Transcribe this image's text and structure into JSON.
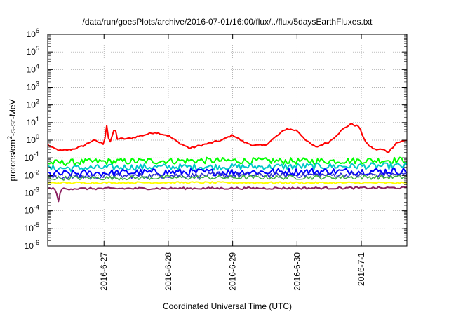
{
  "chart_data": {
    "type": "line",
    "title": "/data/run/goesPlots/archive/2016-07-01/16:00/flux/../flux/5daysEarthFluxes.txt",
    "xlabel": "Coordinated Universal Time (UTC)",
    "ylabel_parts": {
      "base": "protons/cm",
      "sup": "2",
      "rest": "-s-sr-MeV"
    },
    "y_scale": "log",
    "ylim_exp": [
      -6,
      6
    ],
    "y_tick_exponents": [
      -6,
      -5,
      -4,
      -3,
      -2,
      -1,
      0,
      1,
      2,
      3,
      4,
      5,
      6
    ],
    "y_tick_base": "10",
    "xlim": [
      "2016-06-26 03:00",
      "2016-07-01 17:00"
    ],
    "x_ticks": [
      {
        "label": "2016-6-27",
        "t": "2016-06-27 00:00"
      },
      {
        "label": "2016-6-28",
        "t": "2016-06-28 00:00"
      },
      {
        "label": "2016-6-29",
        "t": "2016-06-29 00:00"
      },
      {
        "label": "2016-6-30",
        "t": "2016-06-30 00:00"
      },
      {
        "label": "2016-7-1",
        "t": "2016-07-01 00:00"
      }
    ],
    "grid": true,
    "legend": "none",
    "series": [
      {
        "color": "#ff0000",
        "width": 2,
        "noise": 0.05,
        "points": [
          [
            "2016-06-26 03:00",
            0.55
          ],
          [
            "2016-06-26 05:00",
            0.35
          ],
          [
            "2016-06-26 08:00",
            0.25
          ],
          [
            "2016-06-26 12:00",
            0.3
          ],
          [
            "2016-06-26 16:00",
            0.45
          ],
          [
            "2016-06-26 20:00",
            1.0
          ],
          [
            "2016-06-27 00:00",
            0.6
          ],
          [
            "2016-06-27 01:00",
            7.0
          ],
          [
            "2016-06-27 02:00",
            0.6
          ],
          [
            "2016-06-27 03:00",
            1.5
          ],
          [
            "2016-06-27 04:00",
            5.5
          ],
          [
            "2016-06-27 05:00",
            1.2
          ],
          [
            "2016-06-27 09:00",
            1.2
          ],
          [
            "2016-06-27 14:00",
            1.8
          ],
          [
            "2016-06-27 19:00",
            2.8
          ],
          [
            "2016-06-28 00:00",
            1.8
          ],
          [
            "2016-06-28 04:00",
            0.7
          ],
          [
            "2016-06-28 08:00",
            0.35
          ],
          [
            "2016-06-28 14:00",
            0.6
          ],
          [
            "2016-06-28 20:00",
            1.0
          ],
          [
            "2016-06-29 00:00",
            2.0
          ],
          [
            "2016-06-29 04:00",
            0.8
          ],
          [
            "2016-06-29 08:00",
            0.5
          ],
          [
            "2016-06-29 12:00",
            0.5
          ],
          [
            "2016-06-29 16:00",
            1.5
          ],
          [
            "2016-06-29 20:00",
            4.5
          ],
          [
            "2016-06-30 00:00",
            3.5
          ],
          [
            "2016-06-30 04:00",
            0.8
          ],
          [
            "2016-06-30 07:00",
            0.4
          ],
          [
            "2016-06-30 12:00",
            0.8
          ],
          [
            "2016-06-30 17:00",
            4.0
          ],
          [
            "2016-06-30 20:00",
            8.5
          ],
          [
            "2016-06-30 23:00",
            6.0
          ],
          [
            "2016-07-01 02:00",
            0.6
          ],
          [
            "2016-07-01 05:00",
            0.3
          ],
          [
            "2016-07-01 08:00",
            0.3
          ],
          [
            "2016-07-01 10:00",
            0.2
          ],
          [
            "2016-07-01 13:00",
            0.7
          ],
          [
            "2016-07-01 17:00",
            1.0
          ]
        ]
      },
      {
        "color": "#00ff00",
        "width": 2,
        "noise": 0.18,
        "points": [
          [
            "2016-06-26 03:00",
            0.05
          ],
          [
            "2016-06-26 18:00",
            0.06
          ],
          [
            "2016-06-28 12:00",
            0.07
          ],
          [
            "2016-06-30 06:00",
            0.065
          ],
          [
            "2016-07-01 17:00",
            0.075
          ]
        ]
      },
      {
        "color": "#00c8c8",
        "width": 2,
        "noise": 0.18,
        "points": [
          [
            "2016-06-26 03:00",
            0.025
          ],
          [
            "2016-06-27 12:00",
            0.03
          ],
          [
            "2016-06-29 12:00",
            0.032
          ],
          [
            "2016-07-01 17:00",
            0.035
          ]
        ]
      },
      {
        "color": "#0000ff",
        "width": 2,
        "noise": 0.2,
        "points": [
          [
            "2016-06-26 03:00",
            0.012
          ],
          [
            "2016-06-27 12:00",
            0.015
          ],
          [
            "2016-06-29 12:00",
            0.016
          ],
          [
            "2016-07-01 17:00",
            0.018
          ]
        ]
      },
      {
        "color": "#2a2ad0",
        "width": 1.5,
        "noise": 0.15,
        "points": [
          [
            "2016-06-26 03:00",
            0.008
          ],
          [
            "2016-06-28 00:00",
            0.01
          ],
          [
            "2016-07-01 17:00",
            0.011
          ]
        ]
      },
      {
        "color": "#40b040",
        "width": 1.5,
        "noise": 0.12,
        "points": [
          [
            "2016-06-26 03:00",
            0.007
          ],
          [
            "2016-06-28 00:00",
            0.0075
          ],
          [
            "2016-07-01 17:00",
            0.008
          ]
        ]
      },
      {
        "color": "#ffff00",
        "width": 2,
        "noise": 0.05,
        "points": [
          [
            "2016-06-26 03:00",
            0.0038
          ],
          [
            "2016-06-28 00:00",
            0.004
          ],
          [
            "2016-07-01 17:00",
            0.0038
          ]
        ]
      },
      {
        "color": "#8b2060",
        "width": 2,
        "noise": 0.06,
        "points": [
          [
            "2016-06-26 03:00",
            0.0018
          ],
          [
            "2016-06-26 06:00",
            0.0018
          ],
          [
            "2016-06-26 07:00",
            0.0003
          ],
          [
            "2016-06-26 08:00",
            0.0018
          ],
          [
            "2016-07-01 17:00",
            0.002
          ]
        ]
      }
    ]
  }
}
